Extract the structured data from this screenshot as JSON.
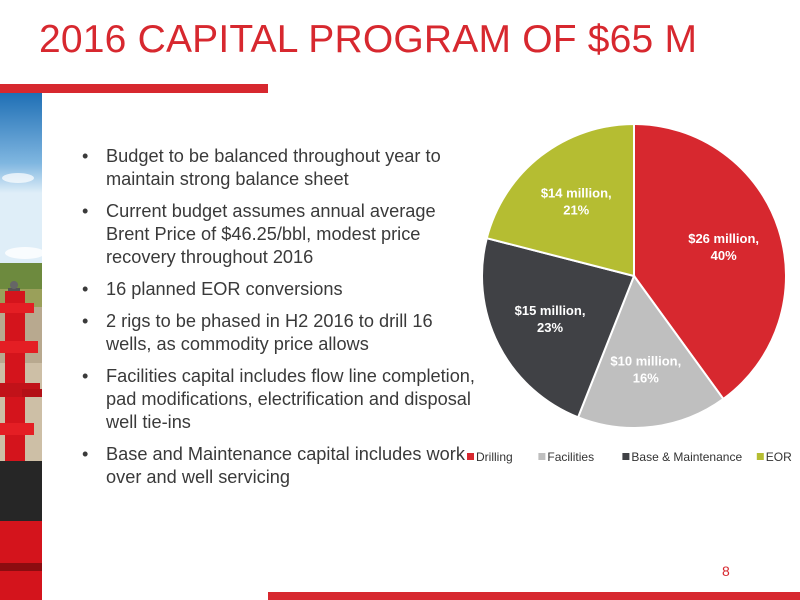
{
  "slide": {
    "title": "2016 CAPITAL PROGRAM OF $65 M",
    "page_number": "8",
    "bullets": [
      "Budget to be balanced throughout year to maintain strong balance sheet",
      "Current budget assumes annual average Brent Price of $46.25/bbl, modest price recovery throughout 2016",
      "16 planned EOR conversions",
      "2 rigs to be phased in H2 2016 to drill 16 wells, as commodity price allows",
      "Facilities capital includes flow line completion, pad modifications, electrification and disposal well tie-ins",
      "Base and Maintenance capital includes work over and well servicing"
    ],
    "bullet_glyph": "•"
  },
  "colors": {
    "accent": "#d7282f",
    "drilling": "#d7282f",
    "facilities": "#bfbfbf",
    "base_maintenance": "#404145",
    "eor": "#b5bd32"
  },
  "chart_data": {
    "type": "pie",
    "title": "",
    "legend_position": "bottom",
    "slices": [
      {
        "name": "Drilling",
        "value": 40,
        "label_line1": "$26 million,",
        "label_line2": "40%",
        "color": "#d7282f"
      },
      {
        "name": "Facilities",
        "value": 16,
        "label_line1": "$10 million,",
        "label_line2": "16%",
        "color": "#bfbfbf"
      },
      {
        "name": "Base & Maintenance",
        "value": 23,
        "label_line1": "$15 million,",
        "label_line2": "23%",
        "color": "#404145"
      },
      {
        "name": "EOR",
        "value": 21,
        "label_line1": "$14 million,",
        "label_line2": "21%",
        "color": "#b5bd32"
      }
    ]
  }
}
